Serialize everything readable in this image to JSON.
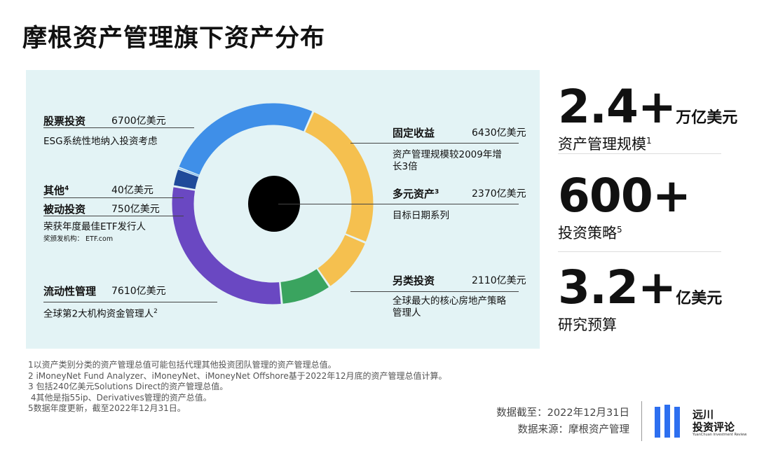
{
  "title": "摩根资产管理旗下资产分布",
  "colors": {
    "equity": "#3f8fe8",
    "fixed_income": "#f5c04f",
    "multi_asset": "#f5c04f",
    "alternatives": "#3aa45f",
    "liquidity": "#6a48c2",
    "passive": "#1f4a9a",
    "other": "#8bbff0",
    "panel_bg": "#e3f3f5",
    "accent": "#2d6ff0"
  },
  "chart_data": {
    "type": "pie",
    "donut": true,
    "unit": "亿美元",
    "slices": [
      {
        "label": "股票投资",
        "value": 6700,
        "display": "6700亿美元",
        "desc": "ESG系统性地纳入投资考虑",
        "color": "#3f8fe8"
      },
      {
        "label": "固定收益",
        "value": 6430,
        "display": "6430亿美元",
        "desc": "资产管理规模较2009年增长3倍",
        "color": "#f5c04f"
      },
      {
        "label": "多元资产",
        "value": 2370,
        "display": "2370亿美元",
        "desc": "目标日期系列",
        "color": "#f5c04f",
        "sup": "3"
      },
      {
        "label": "另类投资",
        "value": 2110,
        "display": "2110亿美元",
        "desc": "全球最大的核心房地产策略管理人",
        "color": "#3aa45f"
      },
      {
        "label": "流动性管理",
        "value": 7610,
        "display": "7610亿美元",
        "desc": "全球第2大机构资金管理人",
        "color": "#6a48c2",
        "sup": "2"
      },
      {
        "label": "被动投资",
        "value": 750,
        "display": "750亿美元",
        "desc": "荣获年度最佳ETF发行人",
        "note": "奖颁发机构： ETF.com",
        "color": "#1f4a9a"
      },
      {
        "label": "其他",
        "value": 40,
        "display": "40亿美元",
        "color": "#8bbff0",
        "sup": "4"
      }
    ]
  },
  "labels": {
    "equity": {
      "name": "股票投资",
      "value": "6700亿美元",
      "desc": "ESG系统性地纳入投资考虑"
    },
    "other": {
      "name": "其他",
      "sup": "4",
      "value": "40亿美元"
    },
    "passive": {
      "name": "被动投资",
      "value": "750亿美元",
      "desc": "荣获年度最佳ETF发行人",
      "note": "奖颁发机构： ETF.com"
    },
    "liquidity": {
      "name": "流动性管理",
      "value": "7610亿美元",
      "desc": "全球第2大机构资金管理人",
      "sup": "2"
    },
    "fixed": {
      "name": "固定收益",
      "value": "6430亿美元",
      "desc1": "资产管理规模较2009年增",
      "desc2": "长3倍"
    },
    "multi": {
      "name": "多元资产",
      "sup": "3",
      "value": "2370亿美元",
      "desc": "目标日期系列"
    },
    "alt": {
      "name": "另类投资",
      "value": "2110亿美元",
      "desc1": "全球最大的核心房地产策略",
      "desc2": "管理人"
    }
  },
  "stats": [
    {
      "big": "2.4+",
      "unit": "万亿美元",
      "caption": "资产管理规模",
      "sup": "1"
    },
    {
      "big": "600+",
      "unit": "",
      "caption": "投资策略",
      "sup": "5"
    },
    {
      "big": "3.2+",
      "unit": "亿美元",
      "caption": "研究预算",
      "sup": ""
    }
  ],
  "footnotes": [
    "1以资产类别分类的资产管理总值可能包括代理其他投资团队管理的资产管理总值。",
    "2 iMoneyNet Fund Analyzer、iMoneyNet、iMoneyNet Offshore基于2022年12月底的资产管理总值计算。",
    "3 包括240亿美元Solutions Direct的资产管理总值。",
    " 4其他是指55ip、Derivatives管理的资产总值。",
    "5数据年度更新，截至2022年12月31日。"
  ],
  "source": {
    "date": "数据截至：2022年12月31日",
    "origin": "数据来源：摩根资产管理"
  },
  "logo": {
    "line1": "远川",
    "line2": "投资评论",
    "line3": "YuanChuan Investment Review"
  }
}
